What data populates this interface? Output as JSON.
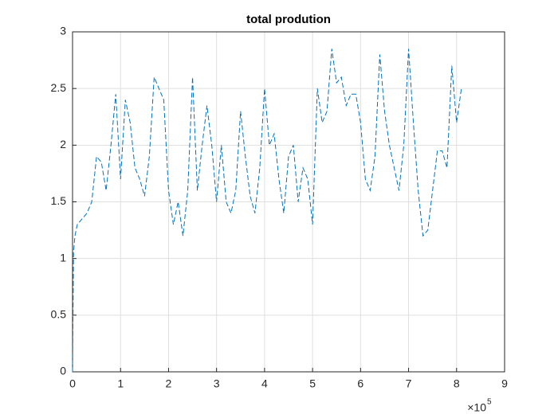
{
  "chart_data": {
    "type": "line",
    "title": "total prodution",
    "x": [
      0,
      2000,
      5000,
      10000,
      20000,
      30000,
      40000,
      50000,
      60000,
      70000,
      80000,
      90000,
      100000,
      110000,
      120000,
      130000,
      140000,
      150000,
      160000,
      170000,
      180000,
      190000,
      200000,
      210000,
      220000,
      230000,
      240000,
      250000,
      260000,
      270000,
      280000,
      290000,
      300000,
      310000,
      320000,
      330000,
      340000,
      350000,
      360000,
      370000,
      380000,
      390000,
      400000,
      410000,
      420000,
      430000,
      440000,
      450000,
      460000,
      470000,
      480000,
      490000,
      500000,
      510000,
      520000,
      530000,
      540000,
      550000,
      560000,
      570000,
      580000,
      590000,
      600000,
      610000,
      620000,
      630000,
      640000,
      650000,
      660000,
      670000,
      680000,
      690000,
      700000,
      710000,
      720000,
      730000,
      740000,
      750000,
      760000,
      770000,
      780000,
      790000,
      800000,
      810000
    ],
    "series": [
      {
        "color": "#0072bd",
        "values": [
          0,
          1.05,
          1.2,
          1.3,
          1.35,
          1.4,
          1.5,
          1.9,
          1.85,
          1.6,
          2.0,
          2.45,
          1.7,
          2.4,
          2.2,
          1.8,
          1.7,
          1.55,
          1.9,
          2.6,
          2.5,
          2.4,
          1.6,
          1.3,
          1.5,
          1.2,
          1.6,
          2.6,
          1.6,
          2.0,
          2.35,
          2.0,
          1.5,
          2.0,
          1.5,
          1.4,
          1.6,
          2.3,
          1.9,
          1.55,
          1.4,
          1.8,
          2.5,
          2.0,
          2.1,
          1.7,
          1.4,
          1.9,
          2.0,
          1.5,
          1.8,
          1.7,
          1.3,
          2.5,
          2.2,
          2.3,
          2.85,
          2.55,
          2.6,
          2.35,
          2.45,
          2.45,
          2.2,
          1.7,
          1.6,
          1.9,
          2.8,
          2.3,
          2.0,
          1.8,
          1.6,
          2.0,
          2.85,
          2.2,
          1.6,
          1.2,
          1.25,
          1.6,
          1.95,
          1.95,
          1.8,
          2.7,
          2.2,
          2.5
        ]
      }
    ],
    "xlim": [
      0,
      900000
    ],
    "xticks": [
      0,
      {
        "value": 100000,
        "label": "1"
      },
      {
        "value": 200000,
        "label": "2"
      },
      {
        "value": 300000,
        "label": "3"
      },
      {
        "value": 400000,
        "label": "4"
      },
      {
        "value": 500000,
        "label": "5"
      },
      {
        "value": 600000,
        "label": "6"
      },
      {
        "value": 700000,
        "label": "7"
      },
      {
        "value": 800000,
        "label": "8"
      },
      {
        "value": 900000,
        "label": "9"
      }
    ],
    "x_multiplier_base": "×10",
    "x_multiplier_exponent": "5",
    "ylim": [
      0,
      3
    ],
    "yticks": [
      0,
      0.5,
      1,
      1.5,
      2,
      2.5,
      3
    ],
    "grid": true,
    "dashed": true
  }
}
